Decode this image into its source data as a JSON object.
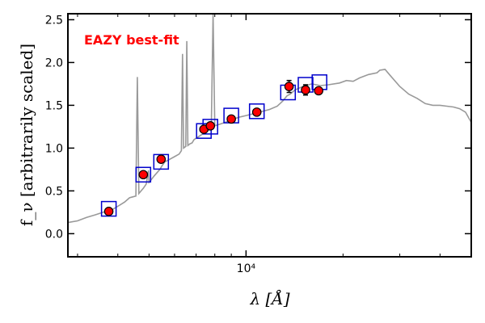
{
  "chart_data": {
    "type": "scatter",
    "title": "",
    "annotation": {
      "text": "EAZY best-fit",
      "color": "#ff0000"
    },
    "xlabel": "λ [Å]",
    "ylabel": "f_ν [arbitrarily scaled]",
    "x_scale": "log",
    "xlim": [
      2800,
      50000
    ],
    "ylim": [
      -0.27,
      2.57
    ],
    "grid": false,
    "y_ticks": [
      0.0,
      0.5,
      1.0,
      1.5,
      2.0,
      2.5
    ],
    "y_tick_labels": [
      "0.0",
      "0.5",
      "1.0",
      "1.5",
      "2.0",
      "2.5"
    ],
    "x_tick_labels": [
      {
        "value": 10000,
        "label": "10⁴"
      }
    ],
    "colors": {
      "sed": "#999999",
      "observed_fill": "#ff0000",
      "model_box": "#0000cc",
      "axes": "#000000",
      "annotation": "#ff0000"
    },
    "series": [
      {
        "kind": "line",
        "points": [
          [
            2800,
            0.13
          ],
          [
            3000,
            0.15
          ],
          [
            3200,
            0.19
          ],
          [
            3400,
            0.22
          ],
          [
            3600,
            0.25
          ],
          [
            3800,
            0.27
          ],
          [
            4000,
            0.32
          ],
          [
            4200,
            0.37
          ],
          [
            4350,
            0.42
          ],
          [
            4450,
            0.43
          ],
          [
            4550,
            0.44
          ],
          [
            4600,
            1.83
          ],
          [
            4650,
            0.47
          ],
          [
            4800,
            0.53
          ],
          [
            4900,
            0.58
          ],
          [
            4980,
            0.74
          ],
          [
            5000,
            0.6
          ],
          [
            5050,
            0.62
          ],
          [
            5200,
            0.68
          ],
          [
            5400,
            0.75
          ],
          [
            5500,
            0.8
          ],
          [
            5600,
            0.84
          ],
          [
            5800,
            0.87
          ],
          [
            6000,
            0.9
          ],
          [
            6200,
            0.93
          ],
          [
            6300,
            0.97
          ],
          [
            6350,
            2.1
          ],
          [
            6400,
            1.0
          ],
          [
            6500,
            1.02
          ],
          [
            6550,
            2.25
          ],
          [
            6600,
            1.03
          ],
          [
            6700,
            1.05
          ],
          [
            6800,
            1.06
          ],
          [
            6900,
            1.1
          ],
          [
            7100,
            1.13
          ],
          [
            7300,
            1.16
          ],
          [
            7500,
            1.19
          ],
          [
            7700,
            1.22
          ],
          [
            7800,
            1.24
          ],
          [
            7900,
            2.57
          ],
          [
            8000,
            1.26
          ],
          [
            8300,
            1.28
          ],
          [
            8600,
            1.3
          ],
          [
            9000,
            1.33
          ],
          [
            9500,
            1.36
          ],
          [
            10000,
            1.38
          ],
          [
            10500,
            1.4
          ],
          [
            11000,
            1.42
          ],
          [
            11800,
            1.45
          ],
          [
            12500,
            1.49
          ],
          [
            13000,
            1.55
          ],
          [
            13400,
            1.61
          ],
          [
            13700,
            1.63
          ],
          [
            14200,
            1.68
          ],
          [
            15000,
            1.72
          ],
          [
            16000,
            1.75
          ],
          [
            17000,
            1.73
          ],
          [
            18000,
            1.74
          ],
          [
            19500,
            1.76
          ],
          [
            20500,
            1.79
          ],
          [
            21500,
            1.78
          ],
          [
            22500,
            1.82
          ],
          [
            24000,
            1.86
          ],
          [
            25500,
            1.88
          ],
          [
            26000,
            1.91
          ],
          [
            27000,
            1.92
          ],
          [
            28000,
            1.85
          ],
          [
            30000,
            1.72
          ],
          [
            32000,
            1.63
          ],
          [
            34000,
            1.58
          ],
          [
            36000,
            1.52
          ],
          [
            38000,
            1.5
          ],
          [
            40000,
            1.5
          ],
          [
            42000,
            1.49
          ],
          [
            44000,
            1.48
          ],
          [
            46000,
            1.46
          ],
          [
            48000,
            1.42
          ],
          [
            50000,
            1.3
          ]
        ]
      },
      {
        "kind": "model_photometry",
        "points": [
          [
            3750,
            0.29
          ],
          [
            4800,
            0.69
          ],
          [
            5450,
            0.84
          ],
          [
            7400,
            1.2
          ],
          [
            7750,
            1.25
          ],
          [
            9000,
            1.38
          ],
          [
            10800,
            1.43
          ],
          [
            13500,
            1.65
          ],
          [
            15300,
            1.74
          ],
          [
            16900,
            1.77
          ]
        ]
      },
      {
        "kind": "observed_photometry",
        "points": [
          [
            3750,
            0.26,
            0.02
          ],
          [
            4800,
            0.69,
            0.03
          ],
          [
            5450,
            0.87,
            0.03
          ],
          [
            7400,
            1.22,
            0.03
          ],
          [
            7750,
            1.26,
            0.03
          ],
          [
            9000,
            1.34,
            0.03
          ],
          [
            10800,
            1.42,
            0.03
          ],
          [
            13600,
            1.72,
            0.07
          ],
          [
            15300,
            1.68,
            0.06
          ],
          [
            16800,
            1.67,
            0.03
          ]
        ]
      }
    ]
  }
}
